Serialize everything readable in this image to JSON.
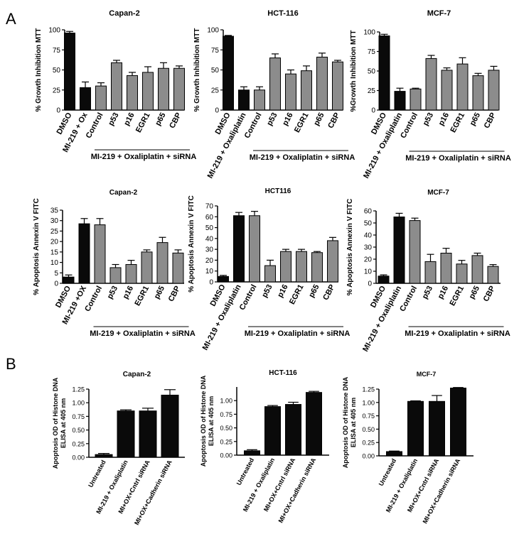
{
  "figure": {
    "panel_a_label": "A",
    "panel_b_label": "B"
  },
  "colors": {
    "black_bar": "#0a0a0a",
    "gray_bar": "#8c8c8c"
  },
  "chart_data": [
    {
      "type": "bar",
      "title": "Capan-2",
      "ylabel": "% Growth Inhibition MTT",
      "ylim": [
        0,
        100
      ],
      "yticks": [
        0,
        25,
        50,
        75,
        100
      ],
      "categories": [
        "DMSO",
        "MI-219 + Ox",
        "Control",
        "p53",
        "p16",
        "EGR1",
        "p65",
        "CBP"
      ],
      "values": [
        96,
        28,
        30,
        59,
        43,
        47,
        52,
        52
      ],
      "errors": [
        2,
        7,
        4,
        3,
        4,
        7,
        7,
        3
      ],
      "colors": [
        "black",
        "black",
        "gray",
        "gray",
        "gray",
        "gray",
        "gray",
        "gray"
      ],
      "group_label": "MI-219 + Oxaliplatin + siRNA",
      "group_start": 2
    },
    {
      "type": "bar",
      "title": "HCT-116",
      "ylabel": "% Growth Inhibition MTT",
      "ylim": [
        0,
        100
      ],
      "yticks": [
        0,
        25,
        50,
        75,
        100
      ],
      "categories": [
        "DMSO",
        "MI-219 + Oxaliplatin",
        "Control",
        "p53",
        "p16",
        "EGR1",
        "p65",
        "CBP"
      ],
      "values": [
        92,
        25,
        25,
        65,
        45,
        49,
        66,
        60
      ],
      "errors": [
        1,
        4,
        4,
        5,
        5,
        6,
        5,
        2
      ],
      "colors": [
        "black",
        "black",
        "gray",
        "gray",
        "gray",
        "gray",
        "gray",
        "gray"
      ],
      "group_label": "MI-219 + Oxaliplatin + siRNA",
      "group_start": 2
    },
    {
      "type": "bar",
      "title": "MCF-7",
      "ylabel": "%Growth Inhibition MTT",
      "ylim": [
        0,
        100
      ],
      "yticks": [
        0,
        25,
        50,
        75,
        100
      ],
      "categories": [
        "DMSO",
        "MI-219 + Oxaliplatin",
        "Control",
        "p53",
        "p16",
        "EGR1",
        "p65",
        "CBP"
      ],
      "values": [
        95,
        24,
        27,
        66,
        51,
        59,
        44,
        51
      ],
      "errors": [
        2,
        4,
        1,
        4,
        3,
        8,
        3,
        5
      ],
      "colors": [
        "black",
        "black",
        "gray",
        "gray",
        "gray",
        "gray",
        "gray",
        "gray"
      ],
      "group_label": "MI-219 + Oxaliplatin + siRNA",
      "group_start": 2
    },
    {
      "type": "bar",
      "title": "Capan-2",
      "ylabel": "% Apoptosis Annexin V FITC",
      "ylim": [
        0,
        35
      ],
      "yticks": [
        0,
        5,
        10,
        15,
        20,
        25,
        30,
        35
      ],
      "categories": [
        "DMSO",
        "MI-219 +OX",
        "Control",
        "p53",
        "p16",
        "EGR1",
        "p65",
        "CBP"
      ],
      "values": [
        3,
        28.5,
        28,
        7.5,
        9,
        15,
        19.5,
        14.5
      ],
      "errors": [
        1,
        2.5,
        3,
        1.5,
        2,
        1,
        2.5,
        1.5
      ],
      "colors": [
        "black",
        "black",
        "gray",
        "gray",
        "gray",
        "gray",
        "gray",
        "gray"
      ],
      "group_label": "MI-219 + Oxaliplatin + siRNA",
      "group_start": 2
    },
    {
      "type": "bar",
      "title": "HCT116",
      "ylabel": "% Apoptosis Annexin V FITC",
      "ylim": [
        0,
        70
      ],
      "yticks": [
        0,
        10,
        20,
        30,
        40,
        50,
        60,
        70
      ],
      "categories": [
        "DMSO",
        "MI-219 + Oxaliplatin",
        "Control",
        "p53",
        "p16",
        "EGR1",
        "p65",
        "CBP"
      ],
      "values": [
        5,
        61,
        61,
        15,
        28,
        28,
        27,
        38
      ],
      "errors": [
        1,
        3,
        4,
        5,
        2,
        2,
        1,
        3
      ],
      "colors": [
        "black",
        "black",
        "gray",
        "gray",
        "gray",
        "gray",
        "gray",
        "gray"
      ],
      "group_label": "MI-219 + Oxaliplatin + siRNA",
      "group_start": 2
    },
    {
      "type": "bar",
      "title": "MCF-7",
      "ylabel": "% Apoptosis Annexin V FITC",
      "ylim": [
        0,
        60
      ],
      "yticks": [
        0,
        10,
        20,
        30,
        40,
        50,
        60
      ],
      "categories": [
        "DMSO",
        "MI-219 + Oxaliplatin",
        "Control",
        "p53",
        "p16",
        "EGR1",
        "p65",
        "CBP"
      ],
      "values": [
        6,
        55,
        52,
        18,
        25,
        16,
        23,
        14
      ],
      "errors": [
        1,
        3,
        2,
        6,
        4,
        3,
        2,
        1.5
      ],
      "colors": [
        "black",
        "black",
        "gray",
        "gray",
        "gray",
        "gray",
        "gray",
        "gray"
      ],
      "group_label": "MI-219 + Oxaliplatin + siRNA",
      "group_start": 2
    },
    {
      "type": "bar",
      "title": "Capan-2",
      "ylabel": "Apoptosis OD of Histone DNA ELISA at 405 nm",
      "ylabel_lines": [
        "Apoptosis OD of Histone DNA",
        "ELISA at 405 nm"
      ],
      "ylim": [
        0,
        1.25
      ],
      "yticks": [
        0,
        0.25,
        0.5,
        0.75,
        1.0,
        1.25
      ],
      "ytick_labels": [
        "0.00",
        "0.25",
        "0.50",
        "0.75",
        "1.00",
        "1.25"
      ],
      "categories": [
        "Untreated",
        "MI-219 + Oxaliplatin",
        "MI+OX+Cntrl siRNA",
        "MI+OX+Cadherin siRNA"
      ],
      "values": [
        0.05,
        0.85,
        0.85,
        1.14
      ],
      "errors": [
        0.02,
        0.02,
        0.05,
        0.1
      ],
      "colors": [
        "black",
        "black",
        "black",
        "black"
      ]
    },
    {
      "type": "bar",
      "title": "HCT-116",
      "ylabel": "Apoptosis OD of Histone DNA ELISA at 405 nm",
      "ylabel_lines": [
        "Apoptosis OD of Histone DNA",
        "ELISA at 405 nm"
      ],
      "ylim": [
        0,
        1.25
      ],
      "yticks": [
        0,
        0.25,
        0.5,
        0.75,
        1.0
      ],
      "ytick_labels": [
        "0.00",
        "0.25",
        "0.50",
        "0.75",
        "1.00"
      ],
      "categories": [
        "Untreated",
        "MI-219 + Oxaliplatin",
        "MI+OX+Cntrl siRNA",
        "MI+OX+Cadherin siRNA"
      ],
      "values": [
        0.08,
        0.89,
        0.93,
        1.15
      ],
      "errors": [
        0.02,
        0.02,
        0.04,
        0.02
      ],
      "colors": [
        "black",
        "black",
        "black",
        "black"
      ]
    },
    {
      "type": "bar",
      "title": "MCF-7",
      "ylabel": "Apoptosis OD of Histone DNA ELISA at 405 nm",
      "ylabel_lines": [
        "Apoptosis OD of Histone DNA",
        "ELISA at 405 nm"
      ],
      "ylim": [
        0,
        1.25
      ],
      "yticks": [
        0,
        0.25,
        0.5,
        0.75,
        1.0,
        1.25
      ],
      "ytick_labels": [
        "0.00",
        "0.25",
        "0.50",
        "0.75",
        "1.00",
        "1.25"
      ],
      "categories": [
        "Untreated",
        "MI-219 + Oxaliplatin",
        "MI+OX+Cntrl siRNA",
        "MI+OX+Cadherin siRNA"
      ],
      "values": [
        0.08,
        1.02,
        1.02,
        1.27
      ],
      "errors": [
        0.01,
        0.01,
        0.11,
        0.01
      ],
      "colors": [
        "black",
        "black",
        "black",
        "black"
      ]
    }
  ]
}
